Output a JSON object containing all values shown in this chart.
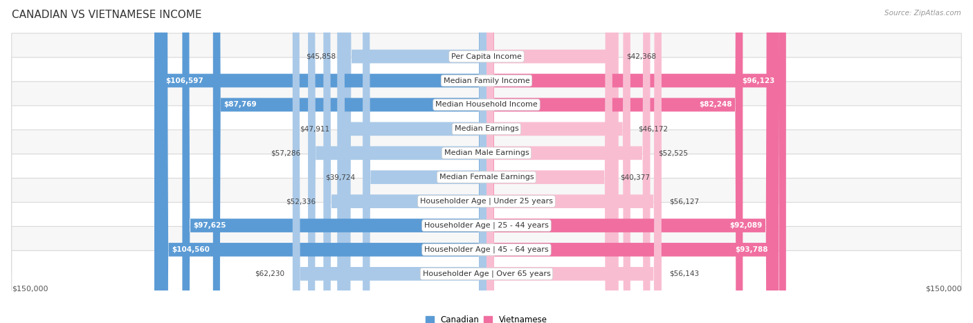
{
  "title": "CANADIAN VS VIETNAMESE INCOME",
  "source": "Source: ZipAtlas.com",
  "categories": [
    "Per Capita Income",
    "Median Family Income",
    "Median Household Income",
    "Median Earnings",
    "Median Male Earnings",
    "Median Female Earnings",
    "Householder Age | Under 25 years",
    "Householder Age | 25 - 44 years",
    "Householder Age | 45 - 64 years",
    "Householder Age | Over 65 years"
  ],
  "canadian_values": [
    45858,
    106597,
    87769,
    47911,
    57286,
    39724,
    52336,
    97625,
    104560,
    62230
  ],
  "vietnamese_values": [
    42368,
    96123,
    82248,
    46172,
    52525,
    40377,
    56127,
    92089,
    93788,
    56143
  ],
  "canadian_labels": [
    "$45,858",
    "$106,597",
    "$87,769",
    "$47,911",
    "$57,286",
    "$39,724",
    "$52,336",
    "$97,625",
    "$104,560",
    "$62,230"
  ],
  "vietnamese_labels": [
    "$42,368",
    "$96,123",
    "$82,248",
    "$46,172",
    "$52,525",
    "$40,377",
    "$56,127",
    "$92,089",
    "$93,788",
    "$56,143"
  ],
  "max_value": 150000,
  "canadian_color_light": "#aac9e8",
  "canadian_color_dark": "#5b9bd5",
  "vietnamese_color_light": "#f9bdd2",
  "vietnamese_color_dark": "#f06fa0",
  "bg_color": "#ffffff",
  "row_colors": [
    "#f7f7f7",
    "#ffffff"
  ],
  "row_border_color": "#d8d8d8",
  "title_fontsize": 11,
  "label_fontsize": 8.0,
  "value_fontsize": 7.5,
  "legend_fontsize": 8.5,
  "white_text_threshold": 65000
}
